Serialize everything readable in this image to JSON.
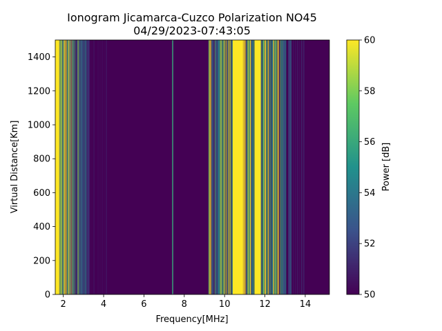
{
  "chart_data": {
    "type": "heatmap",
    "title": "Ionogram Jicamarca-Cuzco Polarization NO45",
    "subtitle": "04/29/2023-07:43:05",
    "xlabel": "Frequency[MHz]",
    "ylabel": "Virtual Distance[Km]",
    "xlim": [
      1.6,
      15.2
    ],
    "ylim": [
      0,
      1500
    ],
    "xticks": [
      2,
      4,
      6,
      8,
      10,
      12,
      14
    ],
    "yticks": [
      0,
      200,
      400,
      600,
      800,
      1000,
      1200,
      1400
    ],
    "colorbar": {
      "label": "Power [dB]",
      "range": [
        50,
        60
      ],
      "ticks": [
        50,
        52,
        54,
        56,
        58,
        60
      ],
      "colormap": "viridis"
    },
    "background_power_db": 50,
    "bands": [
      {
        "from": 1.6,
        "to": 1.8,
        "power_db": 60,
        "texture": "solid"
      },
      {
        "from": 1.8,
        "to": 2.05,
        "power_db": 57,
        "texture": "striped"
      },
      {
        "from": 2.05,
        "to": 2.4,
        "power_db": 58,
        "texture": "striped"
      },
      {
        "from": 2.4,
        "to": 2.8,
        "power_db": 54,
        "texture": "striped"
      },
      {
        "from": 2.8,
        "to": 3.3,
        "power_db": 52.5,
        "texture": "striped"
      },
      {
        "from": 3.3,
        "to": 4.2,
        "power_db": 51,
        "texture": "faint"
      },
      {
        "from": 7.4,
        "to": 7.45,
        "power_db": 56,
        "texture": "line"
      },
      {
        "from": 9.2,
        "to": 9.35,
        "power_db": 58,
        "texture": "striped"
      },
      {
        "from": 9.35,
        "to": 9.7,
        "power_db": 53,
        "texture": "striped"
      },
      {
        "from": 9.7,
        "to": 10.4,
        "power_db": 56,
        "texture": "striped"
      },
      {
        "from": 10.4,
        "to": 10.9,
        "power_db": 60,
        "texture": "solid"
      },
      {
        "from": 10.9,
        "to": 11.5,
        "power_db": 57,
        "texture": "striped"
      },
      {
        "from": 11.5,
        "to": 11.8,
        "power_db": 60,
        "texture": "solid"
      },
      {
        "from": 11.8,
        "to": 12.1,
        "power_db": 57,
        "texture": "striped"
      },
      {
        "from": 12.1,
        "to": 12.7,
        "power_db": 58,
        "texture": "striped"
      },
      {
        "from": 12.7,
        "to": 13.3,
        "power_db": 53,
        "texture": "striped"
      },
      {
        "from": 13.3,
        "to": 14.0,
        "power_db": 51.5,
        "texture": "faint"
      }
    ],
    "grid": false
  }
}
